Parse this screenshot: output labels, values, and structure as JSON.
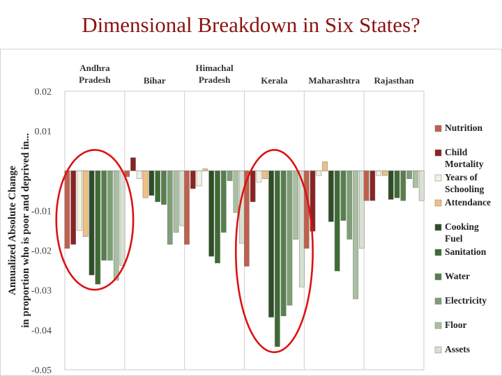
{
  "slide": {
    "title": "Dimensional Breakdown in Six States?"
  },
  "chart_data": {
    "type": "bar",
    "ylabel": [
      "Annualized Absolute Change",
      "in proportion who is poor and deprived in..."
    ],
    "ylim": [
      -0.05,
      0.02
    ],
    "ytick_labels": [
      "0.02",
      "0.01",
      "-0.01",
      "-0.02",
      "-0.03",
      "-0.04",
      "-0.05"
    ],
    "ytick_values": [
      0.02,
      0.01,
      -0.01,
      -0.02,
      -0.03,
      -0.04,
      -0.05
    ],
    "grid": false,
    "legend_position": "right",
    "categories": [
      [
        "Andhra",
        "Pradesh"
      ],
      [
        "Bihar"
      ],
      [
        "Himachal",
        "Pradesh"
      ],
      [
        "Kerala"
      ],
      [
        "Maharashtra"
      ],
      [
        "Rajasthan"
      ]
    ],
    "series": [
      {
        "name": [
          "Nutrition"
        ],
        "color": "#c0604d",
        "values": [
          -0.0195,
          -0.0015,
          -0.0185,
          -0.024,
          -0.0195,
          -0.0075
        ]
      },
      {
        "name": [
          "Child",
          "Mortality"
        ],
        "color": "#8b2323",
        "values": [
          -0.0185,
          0.0033,
          -0.0045,
          -0.0078,
          -0.0152,
          -0.0075
        ]
      },
      {
        "name": [
          "Years of",
          "Schooling"
        ],
        "color": "#f4efdf",
        "values": [
          -0.015,
          -0.002,
          -0.0038,
          -0.0028,
          -0.0012,
          -0.0012
        ]
      },
      {
        "name": [
          "Attendance"
        ],
        "color": "#f0c080",
        "values": [
          -0.0165,
          -0.0068,
          0.0005,
          -0.002,
          0.0023,
          -0.0012
        ]
      },
      {
        "name": [
          "Cooking",
          "Fuel"
        ],
        "color": "#2e4d26",
        "values": [
          -0.0262,
          -0.0062,
          -0.0215,
          -0.0368,
          -0.0128,
          -0.0072
        ]
      },
      {
        "name": [
          "Sanitation"
        ],
        "color": "#3e6b35",
        "values": [
          -0.0285,
          -0.0078,
          -0.0232,
          -0.0442,
          -0.0252,
          -0.0068
        ]
      },
      {
        "name": [
          "Water"
        ],
        "color": "#567f4c",
        "values": [
          -0.0225,
          -0.0085,
          -0.0155,
          -0.0365,
          -0.0125,
          -0.0075
        ]
      },
      {
        "name": [
          "Electricity"
        ],
        "color": "#7f9e76",
        "values": [
          -0.0225,
          -0.0185,
          -0.0025,
          -0.0338,
          -0.0172,
          -0.002
        ]
      },
      {
        "name": [
          "Floor"
        ],
        "color": "#a9c0a0",
        "values": [
          -0.0275,
          -0.0155,
          -0.0105,
          -0.0172,
          -0.0322,
          -0.0042
        ]
      },
      {
        "name": [
          "Assets"
        ],
        "color": "#d8e0d2",
        "values": [
          -0.0238,
          -0.0138,
          -0.0182,
          -0.0292,
          -0.0195,
          -0.0075
        ]
      }
    ],
    "highlighted_categories": [
      [
        "Andhra",
        "Pradesh"
      ],
      [
        "Kerala"
      ]
    ]
  }
}
